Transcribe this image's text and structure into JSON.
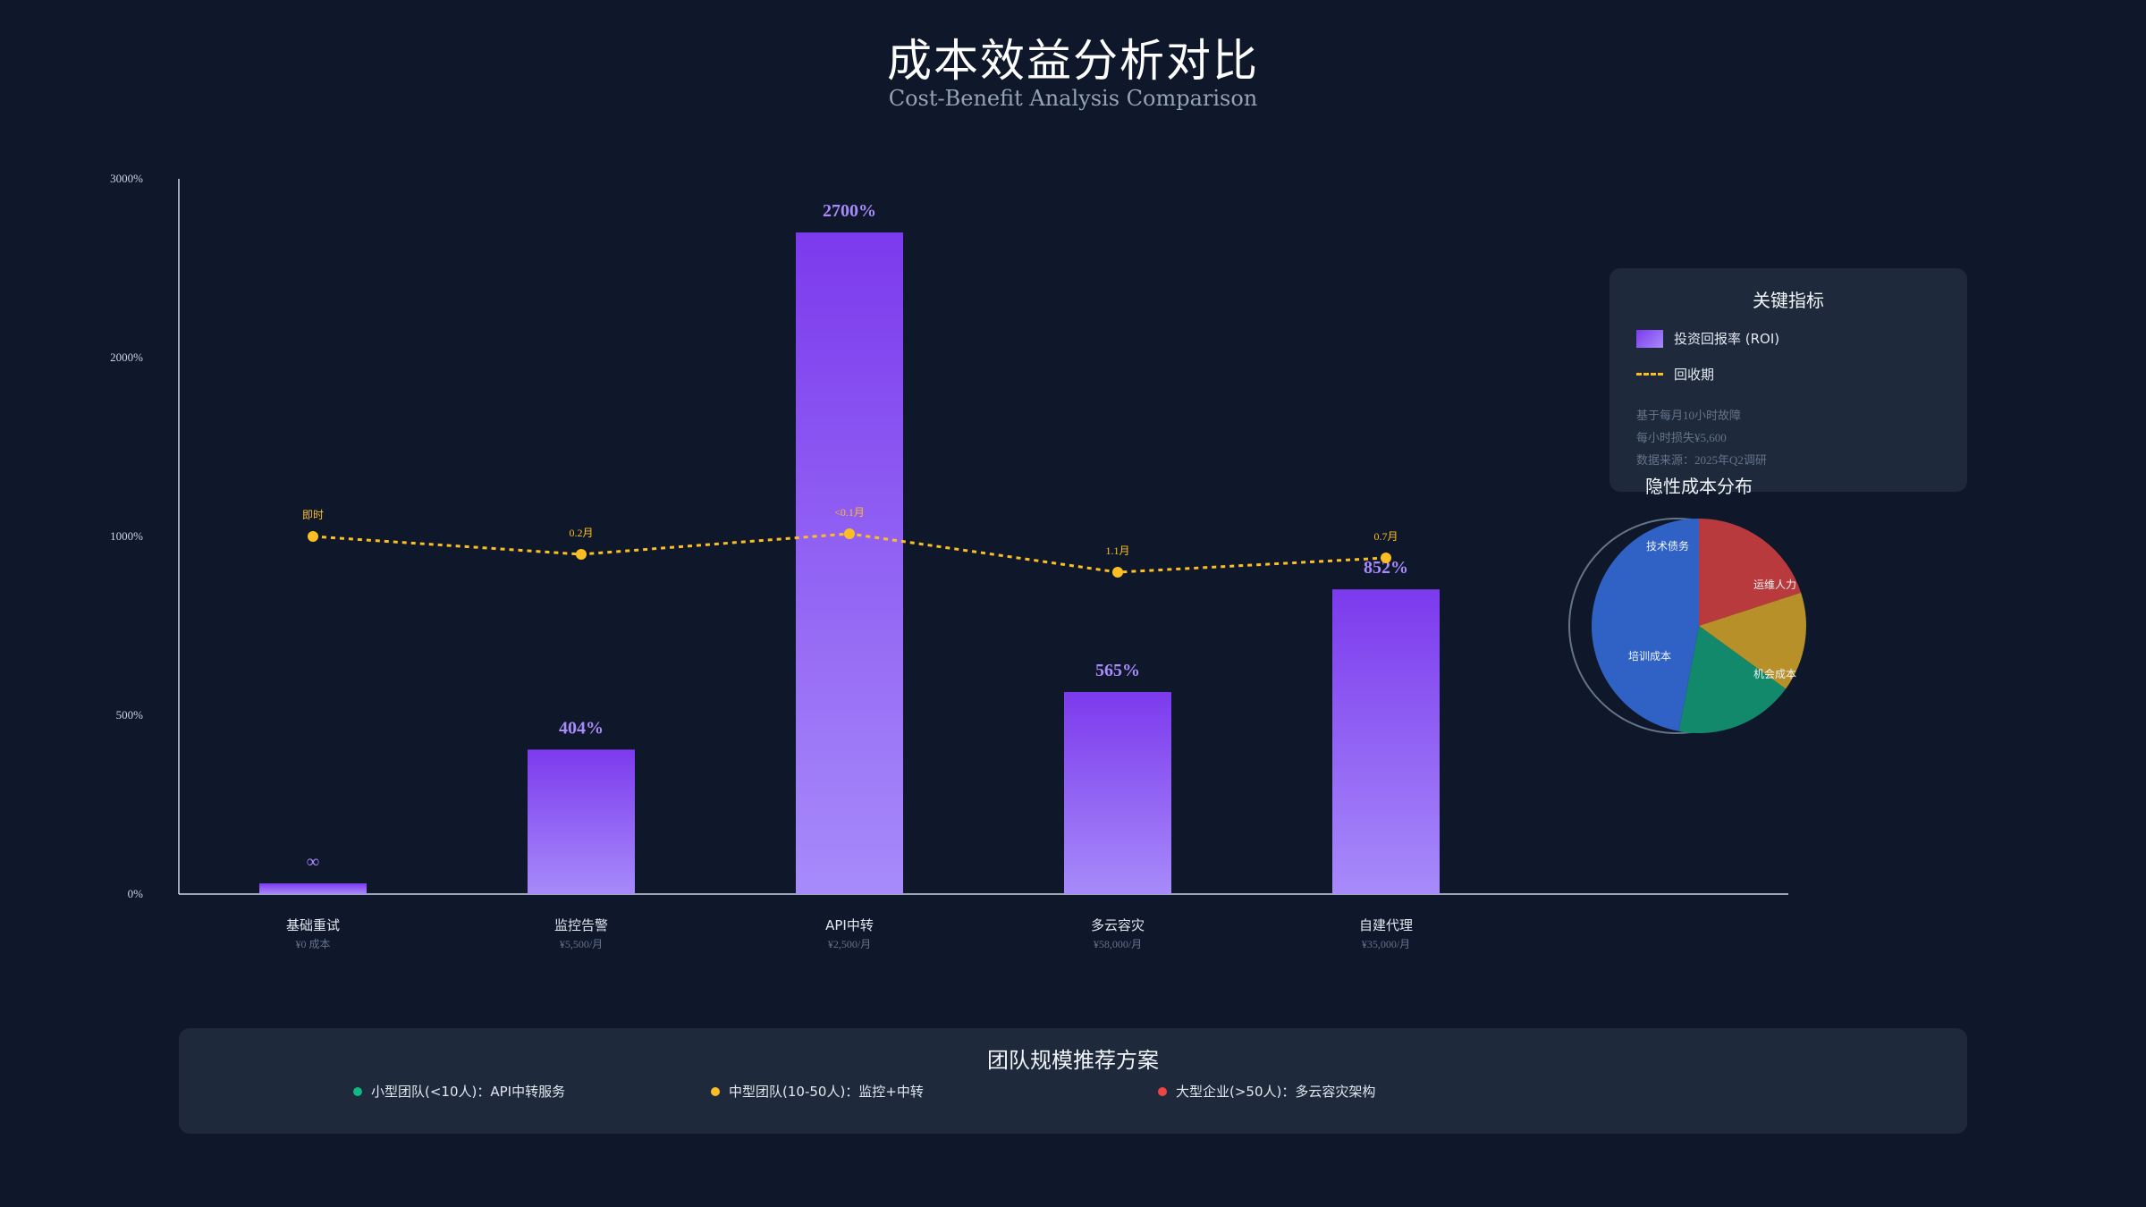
{
  "header": {
    "title": "成本效益分析对比",
    "subtitle": "Cost-Benefit Analysis Comparison"
  },
  "chart_data": [
    {
      "type": "bar",
      "categories": [
        "基础重试",
        "监控告警",
        "API中转",
        "多云容灾",
        "自建代理"
      ],
      "category_costs": [
        "¥0 成本",
        "¥5,500/月",
        "¥2,500/月",
        "¥58,000/月",
        "¥35,000/月"
      ],
      "y_ticks": [
        "0%",
        "500%",
        "1000%",
        "2000%",
        "3000%"
      ],
      "series": [
        {
          "name": "投资回报率 (ROI)",
          "values": [
            30,
            404,
            2700,
            565,
            852
          ],
          "labels": [
            "∞",
            "404%",
            "2700%",
            "565%",
            "852%"
          ],
          "color": "#8b5cf6"
        },
        {
          "name": "回收期",
          "type": "line",
          "values_in_y_units": [
            1000,
            950,
            1015,
            900,
            940
          ],
          "labels": [
            "即时",
            "0.2月",
            "<0.1月",
            "1.1月",
            "0.7月"
          ],
          "color": "#fbbf24"
        }
      ],
      "legend_title": "关键指标",
      "legend_placement": "right",
      "notes": [
        "基于每月10小时故障",
        "每小时损失¥5,600",
        "数据来源：2025年Q2调研"
      ]
    },
    {
      "type": "pie",
      "title": "隐性成本分布",
      "slices": [
        {
          "label": "运维人力",
          "value": 15,
          "color": "#c49a2a"
        },
        {
          "label": "机会成本",
          "value": 18,
          "color": "#16896a"
        },
        {
          "label": "培训成本",
          "value": 20,
          "color": "#c2a235"
        },
        {
          "label": "技术债务",
          "value": 47,
          "color": "#2f62c4"
        }
      ]
    }
  ],
  "recommendations": {
    "title": "团队规模推荐方案",
    "items": [
      {
        "label": "小型团队(<10人)：API中转服务",
        "color": "#10b981"
      },
      {
        "label": "中型团队(10-50人)：监控+中转",
        "color": "#fbbf24"
      },
      {
        "label": "大型企业(>50人)：多云容灾架构",
        "color": "#ef4444"
      }
    ]
  }
}
